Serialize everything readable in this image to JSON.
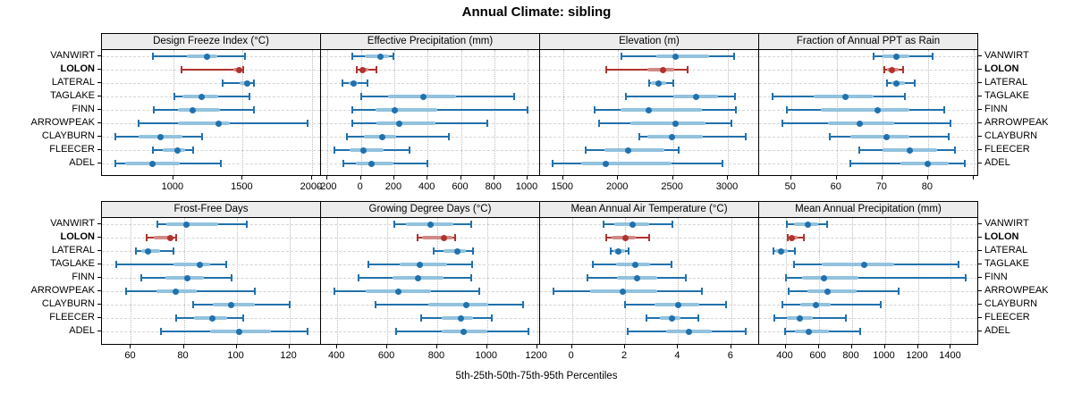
{
  "title": "Annual Climate: sibling",
  "caption": "5th-25th-50th-75th-95th Percentiles",
  "sites": [
    "VANWIRT",
    "LOLON",
    "LATERAL",
    "TAGLAKE",
    "FINN",
    "ARROWPEAK",
    "CLAYBURN",
    "FLEECER",
    "ADEL"
  ],
  "highlight_site": "LOLON",
  "colors": {
    "series_blue": "#2171ad",
    "series_blue_iqr": "#92c2de",
    "highlight_red": "#b0332e",
    "highlight_red_iqr": "#d08a86",
    "strip_bg": "#ececec",
    "panel_border": "#000000",
    "grid_vertical": "#bbbbbb",
    "grid_horizontal": "#d4d4d4",
    "text": "#000000"
  },
  "chart_data": {
    "type": "dotplot",
    "orientation": "horizontal",
    "layout": "4 cols x 2 rows",
    "grid": "on",
    "legend_position": "none",
    "percentile_labels": [
      "5th",
      "25th",
      "50th",
      "75th",
      "95th"
    ],
    "panels": [
      {
        "title": "Design Freeze Index (°C)",
        "row": 0,
        "col": 0,
        "xlim": [
          485,
          2065
        ],
        "ticks": [
          1000,
          1500,
          2000
        ],
        "extra_ticks": [],
        "values": {
          "VANWIRT": [
            850,
            1095,
            1240,
            1315,
            1515
          ],
          "LOLON": [
            1060,
            1430,
            1475,
            1490,
            1505
          ],
          "LATERAL": [
            1355,
            1475,
            1530,
            1555,
            1580
          ],
          "TAGLAKE": [
            1010,
            1065,
            1205,
            1325,
            1550
          ],
          "FINN": [
            860,
            1030,
            1140,
            1335,
            1580
          ],
          "ARROWPEAK": [
            750,
            1030,
            1325,
            1410,
            1970
          ],
          "CLAYBURN": [
            580,
            750,
            910,
            1065,
            1205
          ],
          "FLEECER": [
            850,
            925,
            1030,
            1085,
            1140
          ],
          "ADEL": [
            580,
            655,
            850,
            1045,
            1345
          ]
        }
      },
      {
        "title": "Effective Precipitation (mm)",
        "row": 0,
        "col": 1,
        "xlim": [
          -240,
          1075
        ],
        "ticks": [
          -200,
          0,
          200,
          400,
          600,
          800,
          1000
        ],
        "extra_ticks": [],
        "values": {
          "VANWIRT": [
            -50,
            25,
            115,
            170,
            195
          ],
          "LOLON": [
            -25,
            -5,
            10,
            45,
            95
          ],
          "LATERAL": [
            -110,
            -75,
            -45,
            -20,
            40
          ],
          "TAGLAKE": [
            0,
            165,
            375,
            570,
            920
          ],
          "FINN": [
            -50,
            85,
            205,
            460,
            1000
          ],
          "ARROWPEAK": [
            -50,
            95,
            230,
            445,
            760
          ],
          "CLAYBURN": [
            -85,
            15,
            125,
            210,
            525
          ],
          "FLEECER": [
            -160,
            -70,
            15,
            135,
            290
          ],
          "ADEL": [
            -105,
            -30,
            65,
            195,
            400
          ]
        }
      },
      {
        "title": "Elevation (m)",
        "row": 0,
        "col": 2,
        "xlim": [
          1290,
          3285
        ],
        "ticks": [
          1500,
          2000,
          2500,
          3000
        ],
        "extra_ticks": [],
        "values": {
          "VANWIRT": [
            2030,
            2345,
            2520,
            2830,
            3060
          ],
          "LOLON": [
            1890,
            2265,
            2410,
            2515,
            2635
          ],
          "LATERAL": [
            2285,
            2300,
            2370,
            2440,
            2505
          ],
          "TAGLAKE": [
            2070,
            2505,
            2710,
            2910,
            3065
          ],
          "FINN": [
            1785,
            2025,
            2280,
            2760,
            3075
          ],
          "ARROWPEAK": [
            1825,
            2110,
            2520,
            2800,
            3030
          ],
          "CLAYBURN": [
            2190,
            2270,
            2490,
            2775,
            3165
          ],
          "FLEECER": [
            1705,
            1880,
            2095,
            2420,
            2555
          ],
          "ADEL": [
            1405,
            1665,
            1890,
            2490,
            2950
          ]
        }
      },
      {
        "title": "Fraction of Annual PPT as Rain",
        "row": 0,
        "col": 3,
        "xlim": [
          43,
          91
        ],
        "ticks": [
          50,
          60,
          70,
          80
        ],
        "extra_ticks": [
          90
        ],
        "values": {
          "VANWIRT": [
            68,
            70,
            73,
            76,
            81
          ],
          "LOLON": [
            70.5,
            71,
            72,
            73.5,
            74.5
          ],
          "LATERAL": [
            71,
            72,
            73,
            75,
            77
          ],
          "TAGLAKE": [
            46,
            55,
            62,
            68,
            75
          ],
          "FINN": [
            49,
            56.5,
            69,
            76,
            83.5
          ],
          "ARROWPEAK": [
            48,
            58,
            65,
            72.5,
            85
          ],
          "CLAYBURN": [
            58.5,
            63,
            71,
            76,
            84.5
          ],
          "FLEECER": [
            65,
            70,
            76,
            82,
            86
          ],
          "ADEL": [
            63,
            74,
            80,
            84.5,
            88
          ]
        }
      },
      {
        "title": "Frost-Free Days",
        "row": 1,
        "col": 0,
        "xlim": [
          49,
          132
        ],
        "ticks": [
          60,
          80,
          100,
          120
        ],
        "extra_ticks": [],
        "values": {
          "VANWIRT": [
            70,
            73.5,
            81,
            93,
            104
          ],
          "LOLON": [
            66,
            68.5,
            75,
            76,
            77
          ],
          "LATERAL": [
            62,
            64,
            66.5,
            71,
            76
          ],
          "TAGLAKE": [
            54.5,
            76,
            86,
            90,
            96
          ],
          "FINN": [
            64,
            73,
            81.5,
            87.5,
            98
          ],
          "ARROWPEAK": [
            58,
            69.5,
            77,
            85,
            107
          ],
          "CLAYBURN": [
            83.5,
            91,
            98,
            107,
            120
          ],
          "FLEECER": [
            77,
            84,
            91,
            96.5,
            102.5
          ],
          "ADEL": [
            71.5,
            90,
            101,
            113,
            127
          ]
        }
      },
      {
        "title": "Growing Degree Days (°C)",
        "row": 1,
        "col": 1,
        "xlim": [
          335,
          1212
        ],
        "ticks": [
          400,
          600,
          800,
          1000,
          1200
        ],
        "extra_ticks": [],
        "values": {
          "VANWIRT": [
            630,
            675,
            775,
            865,
            935
          ],
          "LOLON": [
            720,
            740,
            827,
            860,
            872
          ],
          "LATERAL": [
            785,
            825,
            880,
            915,
            945
          ],
          "TAGLAKE": [
            525,
            650,
            730,
            840,
            940
          ],
          "FINN": [
            485,
            620,
            725,
            825,
            935
          ],
          "ARROWPEAK": [
            390,
            515,
            645,
            775,
            970
          ],
          "CLAYBURN": [
            555,
            765,
            915,
            1005,
            1145
          ],
          "FLEECER": [
            735,
            820,
            895,
            945,
            1020
          ],
          "ADEL": [
            635,
            820,
            905,
            1000,
            1165
          ]
        }
      },
      {
        "title": "Mean Annual Air Temperature (°C)",
        "row": 1,
        "col": 2,
        "xlim": [
          -1.2,
          7.05
        ],
        "ticks": [
          0,
          2,
          4,
          6
        ],
        "extra_ticks": [],
        "values": {
          "VANWIRT": [
            1.2,
            1.6,
            2.3,
            2.9,
            3.8
          ],
          "LOLON": [
            1.3,
            1.5,
            2.0,
            2.4,
            2.9
          ],
          "LATERAL": [
            1.45,
            1.55,
            1.75,
            2.0,
            2.15
          ],
          "TAGLAKE": [
            0.8,
            1.65,
            2.4,
            2.95,
            3.75
          ],
          "FINN": [
            0.6,
            1.7,
            2.45,
            3.2,
            4.3
          ],
          "ARROWPEAK": [
            -0.7,
            0.7,
            1.9,
            3.2,
            4.9
          ],
          "CLAYBURN": [
            2.0,
            3.1,
            4.0,
            4.8,
            5.8
          ],
          "FLEECER": [
            2.8,
            3.3,
            3.75,
            4.1,
            4.75
          ],
          "ADEL": [
            2.1,
            3.55,
            4.4,
            5.25,
            6.55
          ]
        }
      },
      {
        "title": "Mean Annual Precipitation (mm)",
        "row": 1,
        "col": 3,
        "xlim": [
          240,
          1565
        ],
        "ticks": [
          400,
          600,
          800,
          1000,
          1200,
          1400
        ],
        "extra_ticks": [],
        "values": {
          "VANWIRT": [
            405,
            450,
            535,
            595,
            650
          ],
          "LOLON": [
            415,
            420,
            440,
            470,
            510
          ],
          "LATERAL": [
            325,
            340,
            375,
            415,
            455
          ],
          "TAGLAKE": [
            450,
            620,
            875,
            1055,
            1445
          ],
          "FINN": [
            400,
            500,
            630,
            840,
            1490
          ],
          "ARROWPEAK": [
            420,
            530,
            655,
            830,
            1085
          ],
          "CLAYBURN": [
            380,
            490,
            585,
            675,
            975
          ],
          "FLEECER": [
            330,
            410,
            485,
            565,
            765
          ],
          "ADEL": [
            395,
            455,
            540,
            660,
            850
          ]
        }
      }
    ]
  }
}
